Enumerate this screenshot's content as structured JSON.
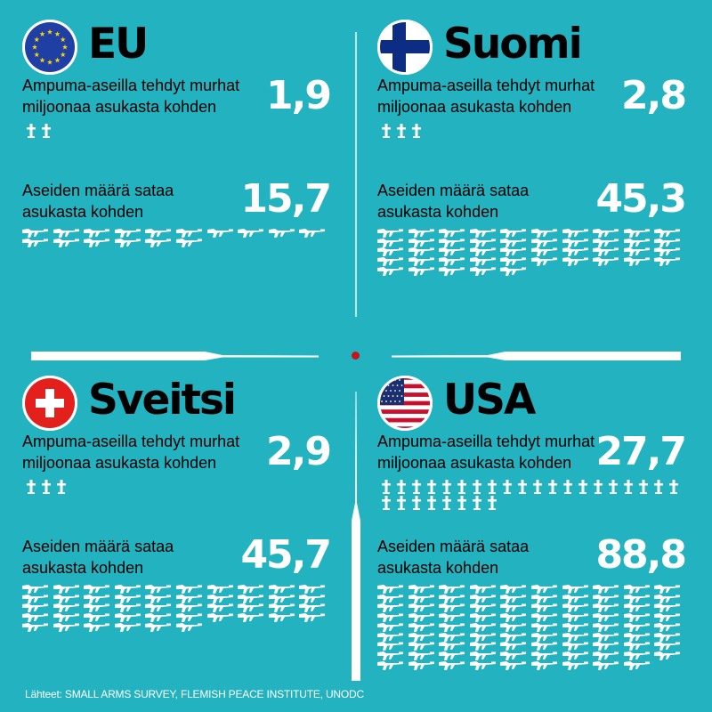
{
  "colors": {
    "background": "#23b2bf",
    "icon": "#ffffff",
    "center_dot": "#c4151c"
  },
  "chart_data": {
    "type": "table",
    "title": "",
    "metrics": [
      "Ampuma-aseilla tehdyt murhat miljoonaa asukasta kohden",
      "Aseiden määrä sataa asukasta kohden"
    ],
    "countries": [
      {
        "key": "eu",
        "name": "EU",
        "flag": "eu-flag",
        "murders_per_million": 1.9,
        "murders_label": "1,9",
        "guns_per_100": 15.7,
        "guns_label": "15,7"
      },
      {
        "key": "fi",
        "name": "Suomi",
        "flag": "finland-flag",
        "murders_per_million": 2.8,
        "murders_label": "2,8",
        "guns_per_100": 45.3,
        "guns_label": "45,3"
      },
      {
        "key": "ch",
        "name": "Sveitsi",
        "flag": "switzerland-flag",
        "murders_per_million": 2.9,
        "murders_label": "2,9",
        "guns_per_100": 45.7,
        "guns_label": "45,7"
      },
      {
        "key": "us",
        "name": "USA",
        "flag": "usa-flag",
        "murders_per_million": 27.7,
        "murders_label": "27,7",
        "guns_per_100": 88.8,
        "guns_label": "88,8"
      }
    ],
    "icon_units": {
      "cross": "1 murha miljoonaa asukasta kohden",
      "gun": "1 ase sataa asukasta kohden"
    }
  },
  "labels": {
    "murder_line1": "Ampuma-aseilla tehdyt murhat",
    "murder_line2": "miljoonaa asukasta kohden",
    "gun_line1": "Aseiden määrä sataa",
    "gun_line2": "asukasta kohden"
  },
  "footer": {
    "sources": "Lähteet: SMALL ARMS SURVEY, FLEMISH PEACE INSTITUTE, UNODC"
  },
  "icons": {
    "cross": "cross-icon",
    "gun": "rifle-icon"
  }
}
